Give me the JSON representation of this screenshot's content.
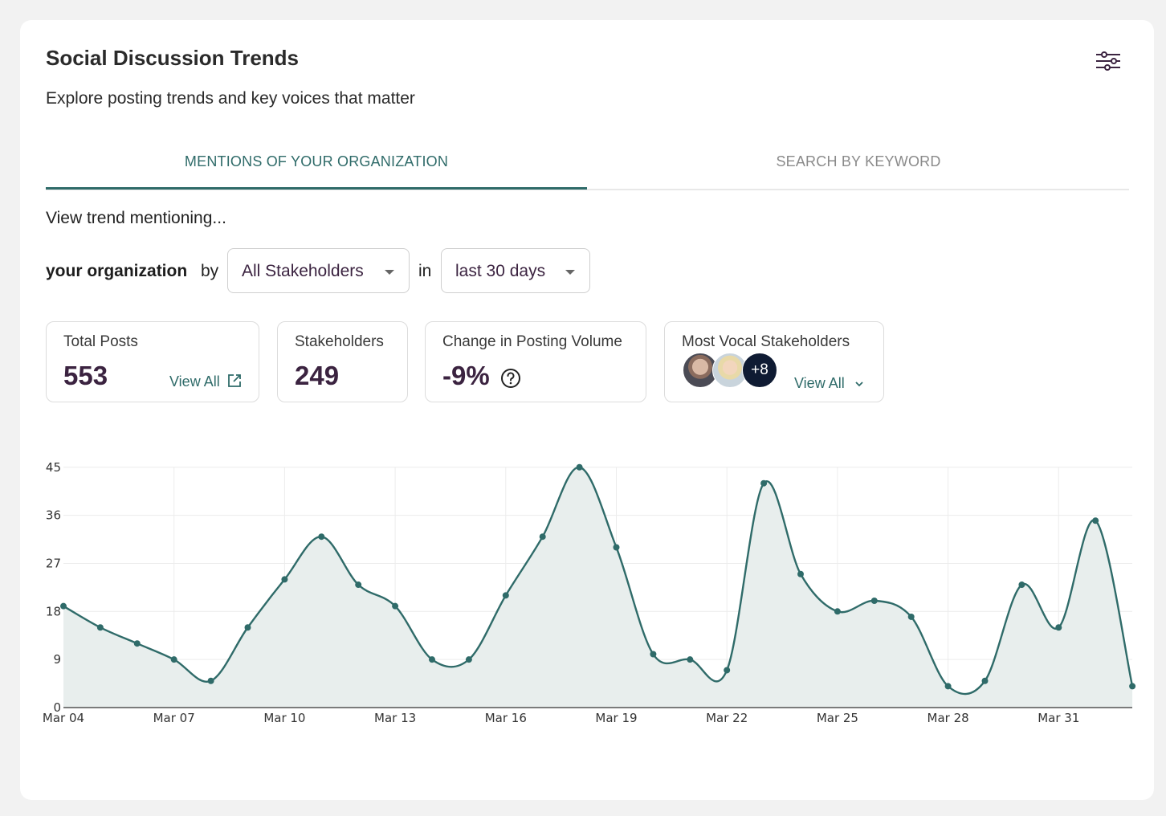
{
  "header": {
    "title": "Social Discussion Trends",
    "subtitle": "Explore posting trends and key voices that matter"
  },
  "tabs": [
    {
      "label": "MENTIONS OF YOUR ORGANIZATION",
      "active": true
    },
    {
      "label": "SEARCH BY KEYWORD",
      "active": false
    }
  ],
  "filters": {
    "prompt": "View trend mentioning...",
    "subject": "your organization",
    "by_label": "by",
    "stakeholder_select": "All Stakeholders",
    "in_label": "in",
    "period_select": "last 30 days"
  },
  "stats": {
    "total_posts": {
      "label": "Total Posts",
      "value": "553",
      "link": "View All"
    },
    "stakeholders": {
      "label": "Stakeholders",
      "value": "249"
    },
    "change": {
      "label": "Change in Posting Volume",
      "value": "-9%"
    },
    "vocal": {
      "label": "Most Vocal Stakeholders",
      "more": "+8",
      "link": "View All"
    }
  },
  "colors": {
    "accent": "#2f6b69",
    "value_text": "#3b2340",
    "fill": "#e8eeed"
  },
  "chart_data": {
    "type": "area",
    "x": [
      "Mar 04",
      "Mar 05",
      "Mar 06",
      "Mar 07",
      "Mar 08",
      "Mar 09",
      "Mar 10",
      "Mar 11",
      "Mar 12",
      "Mar 13",
      "Mar 14",
      "Mar 15",
      "Mar 16",
      "Mar 17",
      "Mar 18",
      "Mar 19",
      "Mar 20",
      "Mar 21",
      "Mar 22",
      "Mar 23",
      "Mar 24",
      "Mar 25",
      "Mar 26",
      "Mar 27",
      "Mar 28",
      "Mar 29",
      "Mar 30",
      "Mar 31",
      "Apr 01",
      "Apr 02"
    ],
    "values": [
      19,
      15,
      12,
      9,
      5,
      15,
      24,
      32,
      23,
      19,
      9,
      9,
      21,
      32,
      45,
      30,
      10,
      9,
      7,
      42,
      25,
      18,
      20,
      17,
      4,
      5,
      23,
      15,
      35,
      4
    ],
    "tick_labels": [
      "Mar 04",
      "Mar 07",
      "Mar 10",
      "Mar 13",
      "Mar 16",
      "Mar 19",
      "Mar 22",
      "Mar 25",
      "Mar 28",
      "Mar 31"
    ],
    "yticks": [
      0,
      9,
      18,
      27,
      36,
      45
    ],
    "ylim": [
      0,
      48
    ],
    "grid": true,
    "legend": "none"
  }
}
